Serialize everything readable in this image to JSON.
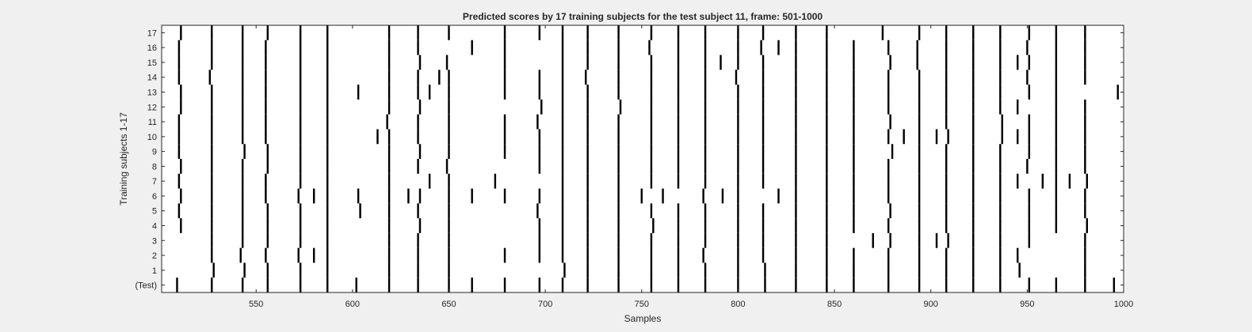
{
  "chart_data": {
    "type": "heatmap",
    "title": "Predicted scores by 17 training subjects for the test subject 11, frame: 501-1000",
    "xlabel": "Samples",
    "ylabel": "Training subjects 1-17",
    "xlim": [
      501,
      1000
    ],
    "xticks": [
      550,
      600,
      650,
      700,
      750,
      800,
      850,
      900,
      950,
      1000
    ],
    "yticklabels": [
      "(Test)",
      "1",
      "2",
      "3",
      "4",
      "5",
      "6",
      "7",
      "8",
      "9",
      "10",
      "11",
      "12",
      "13",
      "14",
      "15",
      "16",
      "17"
    ],
    "background_color": "#ffffff",
    "mark_color": "#000000",
    "grid": false,
    "rows": [
      {
        "label": "(Test)",
        "events": [
          509,
          527,
          543,
          556,
          573,
          587,
          602,
          619,
          634,
          650,
          662,
          679,
          697,
          709,
          722,
          738,
          755,
          769,
          783,
          800,
          814,
          830,
          846,
          860,
          878,
          894,
          908,
          922,
          936,
          951,
          965,
          980,
          995
        ]
      },
      {
        "label": "1",
        "events": [
          528,
          544,
          556,
          573,
          587,
          619,
          634,
          650,
          710,
          722,
          738,
          755,
          769,
          783,
          800,
          814,
          830,
          846,
          860,
          878,
          894,
          908,
          922,
          936,
          946,
          980
        ]
      },
      {
        "label": "2",
        "events": [
          527,
          542,
          555,
          572,
          580,
          587,
          619,
          634,
          650,
          679,
          697,
          709,
          722,
          738,
          755,
          769,
          782,
          800,
          813,
          830,
          846,
          860,
          878,
          894,
          908,
          922,
          936,
          945,
          980
        ]
      },
      {
        "label": "3",
        "events": [
          527,
          543,
          556,
          573,
          587,
          619,
          634,
          650,
          697,
          709,
          722,
          738,
          755,
          769,
          783,
          800,
          813,
          830,
          846,
          870,
          879,
          894,
          903,
          909,
          922,
          936,
          951,
          980
        ]
      },
      {
        "label": "4",
        "events": [
          511,
          527,
          543,
          556,
          573,
          587,
          619,
          635,
          650,
          697,
          709,
          722,
          738,
          756,
          769,
          783,
          800,
          813,
          830,
          846,
          860,
          878,
          894,
          908,
          922,
          936,
          951,
          965,
          981
        ]
      },
      {
        "label": "5",
        "events": [
          510,
          527,
          543,
          556,
          573,
          587,
          604,
          619,
          634,
          650,
          696,
          709,
          722,
          738,
          755,
          769,
          783,
          800,
          813,
          830,
          846,
          860,
          879,
          894,
          908,
          922,
          936,
          951,
          965,
          980
        ]
      },
      {
        "label": "6",
        "events": [
          511,
          527,
          543,
          555,
          572,
          580,
          587,
          603,
          619,
          629,
          635,
          650,
          662,
          679,
          697,
          709,
          722,
          738,
          750,
          761,
          782,
          792,
          800,
          821,
          830,
          846,
          860,
          878,
          894,
          908,
          922,
          936,
          951,
          965,
          980
        ]
      },
      {
        "label": "7",
        "events": [
          510,
          527,
          543,
          555,
          573,
          587,
          619,
          640,
          650,
          674,
          709,
          722,
          738,
          755,
          769,
          783,
          800,
          813,
          830,
          846,
          860,
          878,
          894,
          908,
          922,
          936,
          945,
          958,
          965,
          972,
          981
        ]
      },
      {
        "label": "8",
        "events": [
          511,
          527,
          543,
          556,
          573,
          587,
          619,
          634,
          649,
          697,
          709,
          722,
          738,
          755,
          769,
          783,
          800,
          813,
          830,
          846,
          860,
          878,
          894,
          908,
          922,
          936,
          950,
          965,
          980
        ]
      },
      {
        "label": "9",
        "events": [
          510,
          527,
          544,
          556,
          573,
          587,
          619,
          635,
          650,
          679,
          697,
          709,
          722,
          738,
          755,
          769,
          783,
          800,
          813,
          830,
          846,
          860,
          880,
          894,
          908,
          922,
          936,
          951,
          965,
          980
        ]
      },
      {
        "label": "10",
        "events": [
          510,
          527,
          543,
          555,
          573,
          587,
          613,
          619,
          634,
          650,
          679,
          697,
          709,
          722,
          738,
          755,
          769,
          783,
          800,
          813,
          830,
          846,
          860,
          878,
          886,
          894,
          903,
          909,
          922,
          937,
          945,
          951,
          965,
          980
        ]
      },
      {
        "label": "11",
        "events": [
          510,
          527,
          543,
          555,
          573,
          587,
          618,
          634,
          650,
          679,
          696,
          709,
          722,
          738,
          755,
          769,
          783,
          800,
          813,
          830,
          846,
          860,
          879,
          894,
          908,
          922,
          937,
          951,
          965,
          980
        ]
      },
      {
        "label": "12",
        "events": [
          511,
          527,
          543,
          555,
          573,
          587,
          619,
          635,
          650,
          698,
          709,
          722,
          739,
          755,
          769,
          783,
          800,
          813,
          830,
          846,
          860,
          878,
          894,
          908,
          922,
          936,
          945,
          965,
          980
        ]
      },
      {
        "label": "13",
        "events": [
          511,
          527,
          543,
          555,
          573,
          587,
          603,
          619,
          634,
          640,
          650,
          679,
          697,
          709,
          722,
          738,
          755,
          769,
          783,
          800,
          813,
          830,
          846,
          860,
          878,
          894,
          908,
          922,
          936,
          951,
          965,
          997
        ]
      },
      {
        "label": "14",
        "events": [
          510,
          526,
          543,
          555,
          573,
          587,
          619,
          634,
          645,
          650,
          679,
          697,
          709,
          721,
          738,
          755,
          769,
          783,
          799,
          813,
          830,
          846,
          860,
          878,
          894,
          908,
          922,
          936,
          950,
          965,
          980
        ]
      },
      {
        "label": "15",
        "events": [
          510,
          527,
          543,
          555,
          573,
          587,
          619,
          635,
          649,
          679,
          709,
          722,
          738,
          755,
          769,
          783,
          791,
          800,
          813,
          830,
          846,
          860,
          879,
          893,
          908,
          922,
          936,
          945,
          951,
          965,
          980
        ]
      },
      {
        "label": "16",
        "events": [
          510,
          527,
          543,
          555,
          573,
          587,
          619,
          634,
          662,
          679,
          709,
          722,
          738,
          754,
          769,
          783,
          800,
          812,
          821,
          830,
          846,
          860,
          878,
          893,
          908,
          922,
          936,
          950,
          965,
          980
        ]
      },
      {
        "label": "17",
        "events": [
          511,
          527,
          543,
          556,
          573,
          587,
          619,
          634,
          650,
          679,
          697,
          709,
          722,
          738,
          755,
          769,
          783,
          800,
          813,
          830,
          846,
          875,
          894,
          908,
          922,
          936,
          951,
          965,
          980
        ]
      }
    ]
  }
}
